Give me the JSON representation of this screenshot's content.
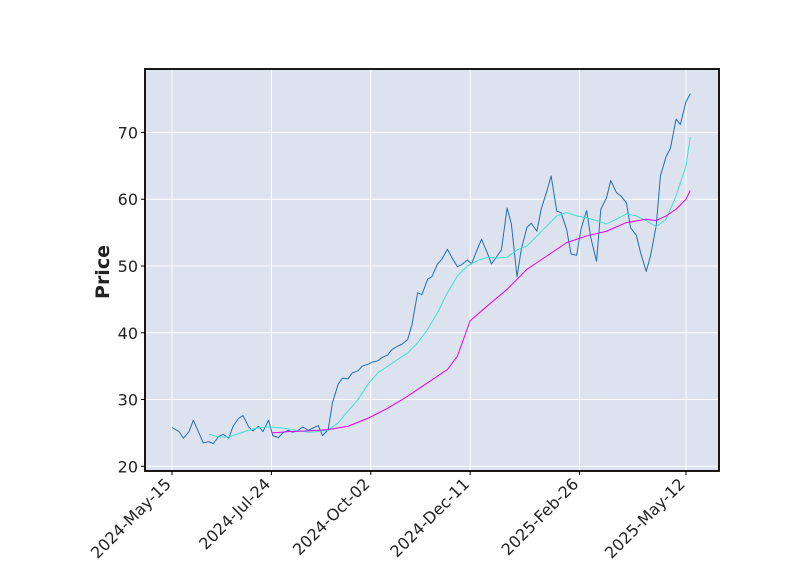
{
  "chart_data": {
    "type": "line",
    "ylabel": "Price",
    "ylim": [
      19.3,
      79.5
    ],
    "grid": true,
    "yticks": [
      20,
      30,
      40,
      50,
      60,
      70
    ],
    "xticks": [
      "2024-May-15",
      "2024-Jul-24",
      "2024-Oct-02",
      "2024-Dec-11",
      "2025-Feb-26",
      "2025-May-12"
    ],
    "colors": {
      "background": "#dde2ef",
      "grid": "#ffffff",
      "frame": "#000000",
      "price": "#1f6fb4",
      "ma_short": "#40e0d0",
      "ma_long": "#e600e6"
    },
    "series": [
      {
        "key": "price",
        "points": [
          [
            "2024-05-15",
            25.8
          ],
          [
            "2024-05-20",
            25.2
          ],
          [
            "2024-05-23",
            24.2
          ],
          [
            "2024-05-27",
            25.2
          ],
          [
            "2024-05-30",
            26.9
          ],
          [
            "2024-06-03",
            25.0
          ],
          [
            "2024-06-06",
            23.5
          ],
          [
            "2024-06-10",
            23.7
          ],
          [
            "2024-06-13",
            23.4
          ],
          [
            "2024-06-17",
            24.5
          ],
          [
            "2024-06-20",
            24.8
          ],
          [
            "2024-06-24",
            24.2
          ],
          [
            "2024-06-27",
            26.0
          ],
          [
            "2024-07-01",
            27.2
          ],
          [
            "2024-07-04",
            27.6
          ],
          [
            "2024-07-08",
            25.9
          ],
          [
            "2024-07-11",
            25.3
          ],
          [
            "2024-07-15",
            26.0
          ],
          [
            "2024-07-18",
            25.2
          ],
          [
            "2024-07-22",
            26.9
          ],
          [
            "2024-07-25",
            24.6
          ],
          [
            "2024-07-29",
            24.3
          ],
          [
            "2024-08-01",
            25.0
          ],
          [
            "2024-08-05",
            25.4
          ],
          [
            "2024-08-08",
            25.1
          ],
          [
            "2024-08-12",
            25.4
          ],
          [
            "2024-08-15",
            25.9
          ],
          [
            "2024-08-19",
            25.4
          ],
          [
            "2024-08-22",
            25.7
          ],
          [
            "2024-08-26",
            26.1
          ],
          [
            "2024-08-29",
            24.6
          ],
          [
            "2024-09-02",
            25.5
          ],
          [
            "2024-09-05",
            29.5
          ],
          [
            "2024-09-09",
            32.3
          ],
          [
            "2024-09-12",
            33.2
          ],
          [
            "2024-09-16",
            33.1
          ],
          [
            "2024-09-19",
            34.0
          ],
          [
            "2024-09-23",
            34.3
          ],
          [
            "2024-09-26",
            35.0
          ],
          [
            "2024-09-30",
            35.3
          ],
          [
            "2024-10-03",
            35.6
          ],
          [
            "2024-10-07",
            35.8
          ],
          [
            "2024-10-10",
            36.3
          ],
          [
            "2024-10-14",
            36.7
          ],
          [
            "2024-10-17",
            37.5
          ],
          [
            "2024-10-21",
            38.0
          ],
          [
            "2024-10-24",
            38.3
          ],
          [
            "2024-10-28",
            39.0
          ],
          [
            "2024-10-31",
            41.2
          ],
          [
            "2024-11-04",
            46.0
          ],
          [
            "2024-11-07",
            45.7
          ],
          [
            "2024-11-11",
            48.0
          ],
          [
            "2024-11-14",
            48.4
          ],
          [
            "2024-11-18",
            50.3
          ],
          [
            "2024-11-21",
            51.0
          ],
          [
            "2024-11-25",
            52.5
          ],
          [
            "2024-11-28",
            51.3
          ],
          [
            "2024-12-02",
            49.9
          ],
          [
            "2024-12-05",
            50.2
          ],
          [
            "2024-12-09",
            50.9
          ],
          [
            "2024-12-12",
            50.3
          ],
          [
            "2024-12-16",
            52.5
          ],
          [
            "2024-12-19",
            54.0
          ],
          [
            "2024-12-23",
            52.0
          ],
          [
            "2024-12-26",
            50.3
          ],
          [
            "2024-12-30",
            51.5
          ],
          [
            "2025-01-02",
            52.4
          ],
          [
            "2025-01-06",
            58.7
          ],
          [
            "2025-01-09",
            56.3
          ],
          [
            "2025-01-13",
            48.4
          ],
          [
            "2025-01-16",
            52.5
          ],
          [
            "2025-01-20",
            55.8
          ],
          [
            "2025-01-23",
            56.4
          ],
          [
            "2025-01-27",
            55.2
          ],
          [
            "2025-01-30",
            58.5
          ],
          [
            "2025-02-03",
            61.2
          ],
          [
            "2025-02-06",
            63.5
          ],
          [
            "2025-02-10",
            58.2
          ],
          [
            "2025-02-13",
            58.0
          ],
          [
            "2025-02-17",
            55.4
          ],
          [
            "2025-02-20",
            51.8
          ],
          [
            "2025-02-24",
            51.6
          ],
          [
            "2025-02-27",
            55.5
          ],
          [
            "2025-03-03",
            58.3
          ],
          [
            "2025-03-06",
            54.2
          ],
          [
            "2025-03-10",
            50.7
          ],
          [
            "2025-03-13",
            58.5
          ],
          [
            "2025-03-17",
            60.2
          ],
          [
            "2025-03-20",
            62.8
          ],
          [
            "2025-03-24",
            61.0
          ],
          [
            "2025-03-27",
            60.5
          ],
          [
            "2025-03-31",
            59.5
          ],
          [
            "2025-04-03",
            55.7
          ],
          [
            "2025-04-07",
            54.6
          ],
          [
            "2025-04-10",
            52.0
          ],
          [
            "2025-04-14",
            49.2
          ],
          [
            "2025-04-17",
            51.5
          ],
          [
            "2025-04-21",
            56.0
          ],
          [
            "2025-04-24",
            63.5
          ],
          [
            "2025-04-28",
            66.4
          ],
          [
            "2025-05-01",
            67.6
          ],
          [
            "2025-05-05",
            72.0
          ],
          [
            "2025-05-08",
            71.2
          ],
          [
            "2025-05-12",
            74.6
          ],
          [
            "2025-05-15",
            75.8
          ]
        ]
      },
      {
        "key": "ma_short",
        "points": [
          [
            "2024-06-10",
            24.8
          ],
          [
            "2024-06-17",
            24.4
          ],
          [
            "2024-06-24",
            24.4
          ],
          [
            "2024-07-01",
            24.9
          ],
          [
            "2024-07-08",
            25.4
          ],
          [
            "2024-07-15",
            25.8
          ],
          [
            "2024-07-22",
            25.9
          ],
          [
            "2024-07-29",
            25.8
          ],
          [
            "2024-08-05",
            25.6
          ],
          [
            "2024-08-12",
            25.3
          ],
          [
            "2024-08-19",
            25.1
          ],
          [
            "2024-08-26",
            25.2
          ],
          [
            "2024-09-02",
            25.4
          ],
          [
            "2024-09-09",
            26.5
          ],
          [
            "2024-09-16",
            28.3
          ],
          [
            "2024-09-23",
            30.0
          ],
          [
            "2024-09-30",
            32.3
          ],
          [
            "2024-10-07",
            34.0
          ],
          [
            "2024-10-14",
            35.0
          ],
          [
            "2024-10-21",
            36.0
          ],
          [
            "2024-10-28",
            37.0
          ],
          [
            "2024-11-04",
            38.5
          ],
          [
            "2024-11-11",
            40.5
          ],
          [
            "2024-11-18",
            43.0
          ],
          [
            "2024-11-25",
            46.0
          ],
          [
            "2024-12-02",
            48.5
          ],
          [
            "2024-12-09",
            50.0
          ],
          [
            "2024-12-16",
            50.8
          ],
          [
            "2024-12-23",
            51.3
          ],
          [
            "2024-12-30",
            51.2
          ],
          [
            "2025-01-06",
            51.3
          ],
          [
            "2025-01-13",
            52.4
          ],
          [
            "2025-01-20",
            53.0
          ],
          [
            "2025-01-27",
            54.5
          ],
          [
            "2025-02-03",
            56.0
          ],
          [
            "2025-02-10",
            57.5
          ],
          [
            "2025-02-17",
            58.0
          ],
          [
            "2025-02-24",
            57.5
          ],
          [
            "2025-03-03",
            57.2
          ],
          [
            "2025-03-10",
            56.8
          ],
          [
            "2025-03-17",
            56.3
          ],
          [
            "2025-03-24",
            57.0
          ],
          [
            "2025-03-31",
            57.8
          ],
          [
            "2025-04-07",
            57.5
          ],
          [
            "2025-04-14",
            56.8
          ],
          [
            "2025-04-21",
            55.9
          ],
          [
            "2025-04-28",
            57.0
          ],
          [
            "2025-05-05",
            60.5
          ],
          [
            "2025-05-12",
            65.0
          ],
          [
            "2025-05-15",
            69.3
          ]
        ]
      },
      {
        "key": "ma_long",
        "points": [
          [
            "2024-07-24",
            25.0
          ],
          [
            "2024-08-05",
            25.2
          ],
          [
            "2024-08-19",
            25.3
          ],
          [
            "2024-09-02",
            25.5
          ],
          [
            "2024-09-16",
            26.0
          ],
          [
            "2024-09-30",
            27.2
          ],
          [
            "2024-10-14",
            28.7
          ],
          [
            "2024-10-28",
            30.5
          ],
          [
            "2024-11-11",
            32.5
          ],
          [
            "2024-11-25",
            34.5
          ],
          [
            "2024-12-02",
            36.5
          ],
          [
            "2024-12-11",
            41.8
          ],
          [
            "2024-12-23",
            44.0
          ],
          [
            "2025-01-06",
            46.5
          ],
          [
            "2025-01-20",
            49.5
          ],
          [
            "2025-02-03",
            51.5
          ],
          [
            "2025-02-17",
            53.5
          ],
          [
            "2025-03-03",
            54.5
          ],
          [
            "2025-03-17",
            55.2
          ],
          [
            "2025-03-31",
            56.5
          ],
          [
            "2025-04-14",
            57.0
          ],
          [
            "2025-04-21",
            56.8
          ],
          [
            "2025-04-28",
            57.5
          ],
          [
            "2025-05-05",
            58.5
          ],
          [
            "2025-05-12",
            60.0
          ],
          [
            "2025-05-15",
            61.3
          ]
        ]
      }
    ]
  }
}
